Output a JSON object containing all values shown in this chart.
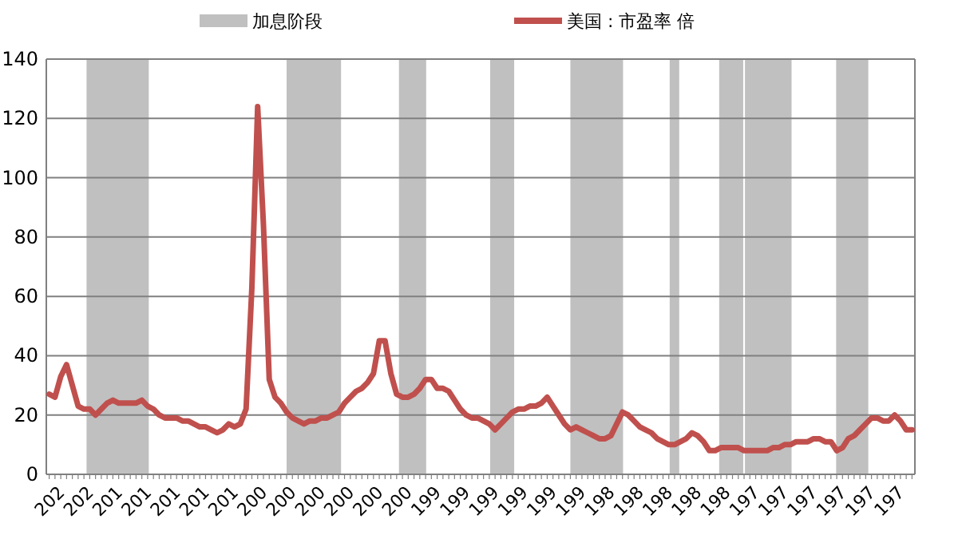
{
  "chart_data": {
    "type": "line",
    "categories": [
      null,
      null,
      "202",
      null,
      null,
      null,
      null,
      "202",
      null,
      null,
      null,
      null,
      "201",
      null,
      null,
      null,
      null,
      "201",
      null,
      null,
      null,
      null,
      "201",
      null,
      null,
      null,
      null,
      "201",
      null,
      null,
      null,
      null,
      "201",
      null,
      null,
      null,
      null,
      "200",
      null,
      null,
      null,
      null,
      "200",
      null,
      null,
      null,
      null,
      "200",
      null,
      null,
      null,
      null,
      "200",
      null,
      null,
      null,
      null,
      "200",
      null,
      null,
      null,
      null,
      "200",
      null,
      null,
      null,
      null,
      "199",
      null,
      null,
      null,
      null,
      "199",
      null,
      null,
      null,
      null,
      "199",
      null,
      null,
      null,
      null,
      "199",
      null,
      null,
      null,
      null,
      "199",
      null,
      null,
      null,
      null,
      "199",
      null,
      null,
      null,
      null,
      "198",
      null,
      null,
      null,
      null,
      "198",
      null,
      null,
      null,
      null,
      "198",
      null,
      null,
      null,
      null,
      "198",
      null,
      null,
      null,
      null,
      "198",
      null,
      null,
      null,
      null,
      "197",
      null,
      null,
      null,
      null,
      "197",
      null,
      null,
      null,
      null,
      "197",
      null,
      null,
      null,
      null,
      "197",
      null,
      null,
      null,
      null,
      "197",
      null,
      null,
      null,
      null,
      "197",
      null,
      null
    ],
    "ylim": [
      0,
      140
    ],
    "yticks": [
      0,
      20,
      40,
      60,
      80,
      100,
      120,
      140
    ],
    "grid": "y",
    "legend": "top",
    "annotations": [
      "加息阶段"
    ],
    "series": [
      {
        "name": "美国 : 市盈率 倍",
        "color": "#c0504d",
        "values": [
          27,
          26,
          33,
          37,
          30,
          23,
          22,
          22,
          20,
          22,
          24,
          25,
          24,
          24,
          24,
          24,
          25,
          23,
          22,
          20,
          19,
          19,
          19,
          18,
          18,
          17,
          16,
          16,
          15,
          14,
          15,
          17,
          16,
          17,
          22,
          63,
          124,
          84,
          32,
          26,
          24,
          21,
          19,
          18,
          17,
          18,
          18,
          19,
          19,
          20,
          21,
          24,
          26,
          28,
          29,
          31,
          34,
          45,
          45,
          34,
          27,
          26,
          26,
          27,
          29,
          32,
          32,
          29,
          29,
          28,
          25,
          22,
          20,
          19,
          19,
          18,
          17,
          15,
          17,
          19,
          21,
          22,
          22,
          23,
          23,
          24,
          26,
          23,
          20,
          17,
          15,
          16,
          15,
          14,
          13,
          12,
          12,
          13,
          17,
          21,
          20,
          18,
          16,
          15,
          14,
          12,
          11,
          10,
          10,
          11,
          12,
          14,
          13,
          11,
          8,
          8,
          9,
          9,
          9,
          9,
          8,
          8,
          8,
          8,
          8,
          9,
          9,
          10,
          10,
          11,
          11,
          11,
          12,
          12,
          11,
          11,
          8,
          9,
          12,
          13,
          15,
          17,
          19,
          19,
          18,
          18,
          20,
          18,
          15,
          15
        ]
      }
    ]
  }
}
